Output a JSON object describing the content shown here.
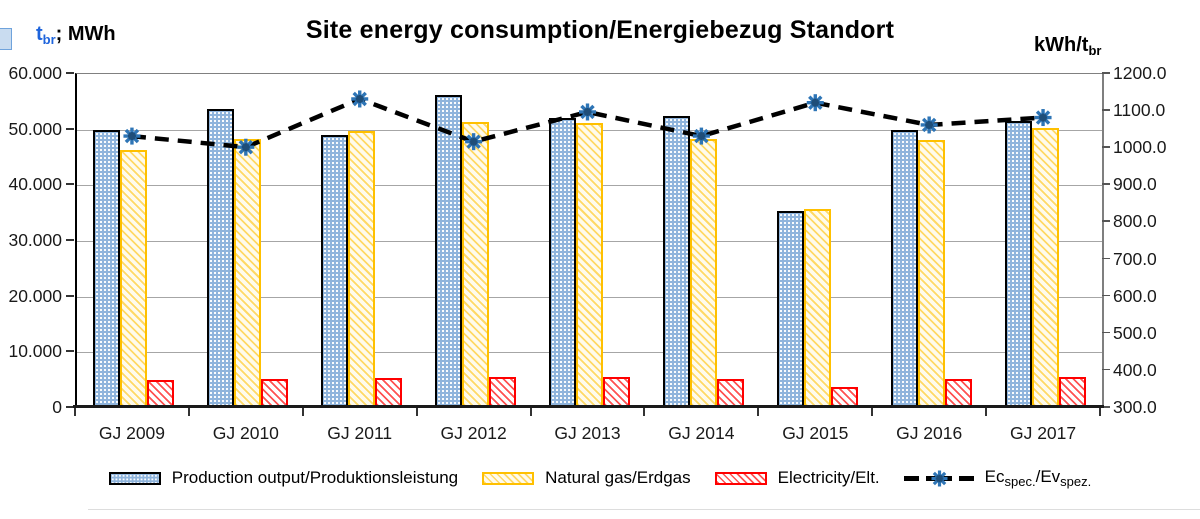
{
  "header": {
    "title": "Site energy consumption/Energiebezug Standort",
    "left_axis_title": {
      "symbol": "t",
      "symbol_sub": "br",
      "suffix": "; MWh"
    },
    "right_axis_title": {
      "main": "kWh/t",
      "sub": "br"
    }
  },
  "colors": {
    "left_axis_symbol": "#1E64DC",
    "production_fill": "#8FB4DC",
    "production_border": "#000000",
    "gas_hatch": "#FFD966",
    "gas_border": "#FFC000",
    "electricity_hatch": "#FF5252",
    "electricity_border": "#FF0000",
    "line": "#000000",
    "marker": "#2E75B6",
    "gridline": "#A6A6A6"
  },
  "legend": [
    {
      "label": "Production output/Produktionsleistung",
      "swatch": "production"
    },
    {
      "label": "Natural gas/Erdgas",
      "swatch": "gas"
    },
    {
      "label": "Electricity/Elt.",
      "swatch": "electricity"
    },
    {
      "label_main1": "Ec",
      "label_sub1": "spec.",
      "label_main2": "/Ev",
      "label_sub2": "spez.",
      "swatch": "line"
    }
  ],
  "chart_data": {
    "type": "bar",
    "subtype": "grouped bars with secondary-axis dashed line (combo chart)",
    "title": "Site energy consumption/Energiebezug Standort",
    "categories": [
      "GJ 2009",
      "GJ 2010",
      "GJ 2011",
      "GJ 2012",
      "GJ 2013",
      "GJ 2014",
      "GJ 2015",
      "GJ 2016",
      "GJ 2017"
    ],
    "left_axis": {
      "label": "t br; MWh",
      "min": 0,
      "max": 60000,
      "step": 10000,
      "tick_labels": [
        "60.000",
        "50.000",
        "40.000",
        "30.000",
        "20.000",
        "10.000",
        "0"
      ]
    },
    "right_axis": {
      "label": "kWh/t br",
      "min": 300,
      "max": 1200,
      "step": 100,
      "tick_labels": [
        "1200.0",
        "1100.0",
        "1000.0",
        "900.0",
        "800.0",
        "700.0",
        "600.0",
        "500.0",
        "400.0",
        "300.0"
      ]
    },
    "series": [
      {
        "name": "Production output/Produktionsleistung",
        "type": "bar",
        "axis": "left",
        "values": [
          49900,
          53700,
          49000,
          56300,
          52100,
          52400,
          35400,
          50000,
          51600
        ]
      },
      {
        "name": "Natural gas/Erdgas",
        "type": "bar",
        "axis": "left",
        "values": [
          46300,
          48300,
          49800,
          51300,
          51200,
          48300,
          35800,
          48100,
          50300
        ]
      },
      {
        "name": "Electricity/Elt.",
        "type": "bar",
        "axis": "left",
        "values": [
          5000,
          5300,
          5400,
          5500,
          5500,
          5300,
          3800,
          5200,
          5500
        ]
      },
      {
        "name": "Ec spec./Ev spez.",
        "type": "line",
        "axis": "right",
        "values": [
          1030,
          1000,
          1130,
          1015,
          1095,
          1030,
          1120,
          1060,
          1080
        ]
      }
    ],
    "grid": "horizontal gridlines at left-axis ticks",
    "legend_position": "bottom"
  }
}
